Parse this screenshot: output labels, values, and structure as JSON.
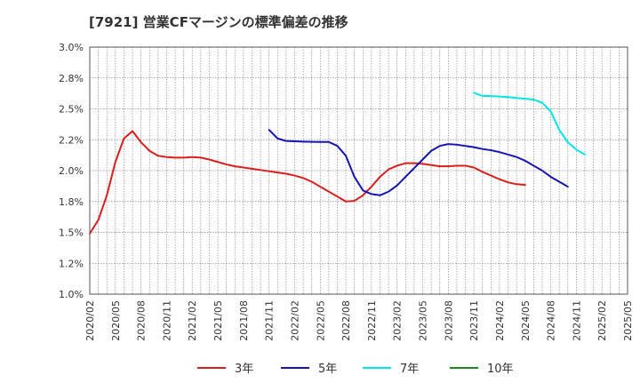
{
  "chart_data": {
    "type": "line",
    "title": "[7921]  営業CFマージンの標準偏差の推移",
    "xlabel": "",
    "ylabel": "",
    "x_ticks": [
      "2020/02",
      "2020/05",
      "2020/08",
      "2020/11",
      "2021/02",
      "2021/05",
      "2021/08",
      "2021/11",
      "2022/02",
      "2022/05",
      "2022/08",
      "2022/11",
      "2023/02",
      "2023/05",
      "2023/08",
      "2023/11",
      "2024/02",
      "2024/05",
      "2024/08",
      "2024/11",
      "2025/02",
      "2025/05"
    ],
    "y_ticks": [
      "1.0%",
      "1.2%",
      "1.5%",
      "1.8%",
      "2.0%",
      "2.2%",
      "2.5%",
      "2.8%",
      "3.0%"
    ],
    "ylim": [
      1.0,
      3.0
    ],
    "grid": true,
    "legend_position": "bottom",
    "series": [
      {
        "name": "3年",
        "color": "#dd1c1c",
        "start": "2020/02",
        "values": [
          1.49,
          1.6,
          1.8,
          2.07,
          2.26,
          2.32,
          2.23,
          2.16,
          2.12,
          2.11,
          2.105,
          2.105,
          2.11,
          2.105,
          2.09,
          2.07,
          2.05,
          2.035,
          2.025,
          2.015,
          2.005,
          1.995,
          1.985,
          1.975,
          1.96,
          1.94,
          1.91,
          1.87,
          1.83,
          1.79,
          1.75,
          1.755,
          1.8,
          1.87,
          1.95,
          2.01,
          2.04,
          2.06,
          2.06,
          2.055,
          2.045,
          2.035,
          2.035,
          2.04,
          2.04,
          2.025,
          1.99,
          1.96,
          1.93,
          1.905,
          1.89,
          1.885
        ]
      },
      {
        "name": "5年",
        "color": "#1414b4",
        "start": "2021/11",
        "values": [
          2.33,
          2.26,
          2.24,
          2.237,
          2.235,
          2.233,
          2.232,
          2.232,
          2.2,
          2.12,
          1.95,
          1.84,
          1.81,
          1.8,
          1.83,
          1.88,
          1.95,
          2.02,
          2.09,
          2.16,
          2.2,
          2.215,
          2.21,
          2.2,
          2.19,
          2.175,
          2.165,
          2.15,
          2.13,
          2.11,
          2.08,
          2.04,
          2.0,
          1.95,
          1.91,
          1.87
        ]
      },
      {
        "name": "7年",
        "color": "#00e5e5",
        "start": "2023/11",
        "values": [
          2.63,
          2.605,
          2.603,
          2.6,
          2.595,
          2.588,
          2.582,
          2.575,
          2.55,
          2.48,
          2.33,
          2.23,
          2.17,
          2.13
        ]
      },
      {
        "name": "10年",
        "color": "#1a8a1a",
        "start": "",
        "values": []
      }
    ]
  }
}
